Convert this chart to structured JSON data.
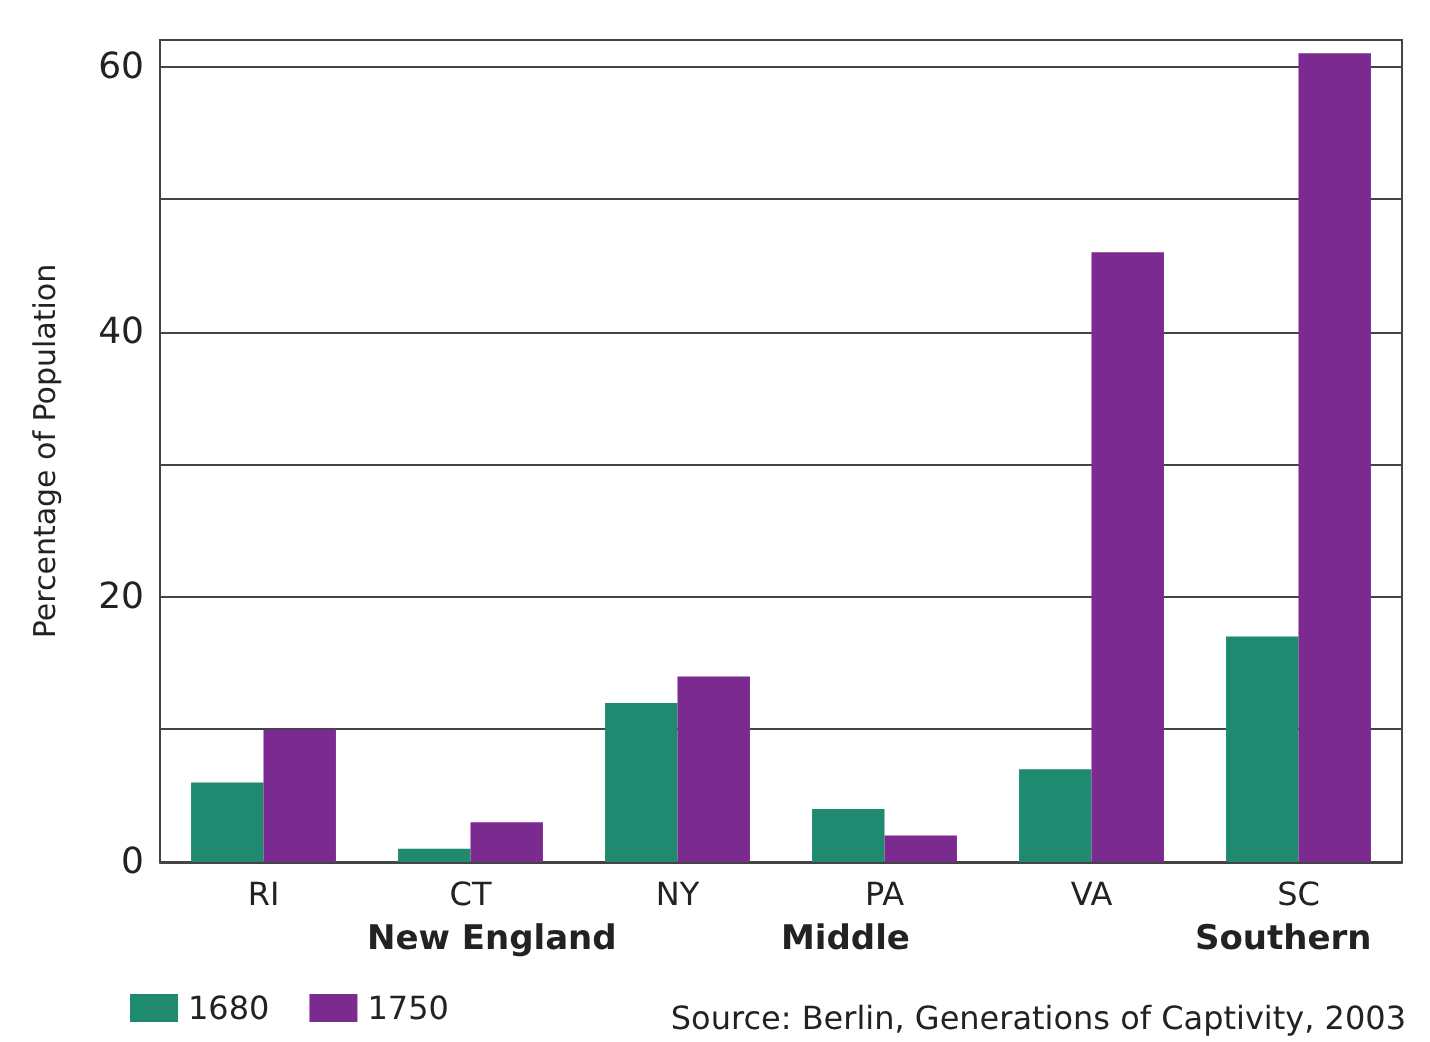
{
  "chart_data": {
    "type": "bar",
    "ylabel": "Percentage of Population",
    "categories": [
      "RI",
      "CT",
      "NY",
      "PA",
      "VA",
      "SC"
    ],
    "series": [
      {
        "name": "1680",
        "color": "#1f8a70",
        "values": [
          6,
          1,
          12,
          4,
          7,
          17
        ]
      },
      {
        "name": "1750",
        "color": "#7b2a90",
        "values": [
          10,
          3,
          14,
          2,
          46,
          61
        ]
      }
    ],
    "ylim": [
      0,
      62
    ],
    "yticks": [
      0,
      {
        "value": 10,
        "label": null
      },
      20,
      {
        "value": 30,
        "label": null
      },
      40,
      {
        "value": 50,
        "label": null
      },
      60
    ],
    "grid": "y",
    "legend": "bottom left",
    "annotations": [
      "New England",
      "Middle",
      "Southern",
      "Source: Berlin, Generations of Captivity, 2003"
    ]
  }
}
